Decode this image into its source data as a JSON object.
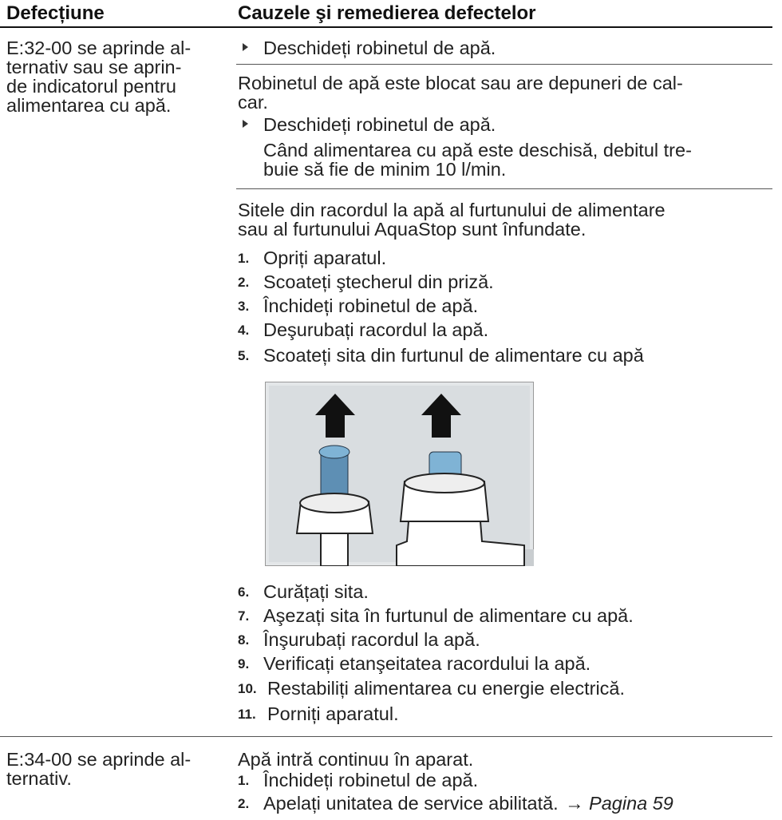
{
  "table": {
    "headers": [
      "Defecțiune",
      "Cauzele şi remedierea defectelor"
    ],
    "rows": [
      {
        "fault": [
          "E:32-00 se aprinde al-",
          "ternativ sau se aprin-",
          "de indicatorul pentru",
          "alimentarea cu apă."
        ],
        "causes": [
          {
            "actions": [
              "Deschideți robinetul de apă."
            ]
          },
          {
            "cause": [
              "Robinetul de apă este blocat sau are depuneri de cal-",
              "car."
            ],
            "actions": [
              "Deschideți robinetul de apă."
            ],
            "note": [
              "Când alimentarea cu apă este deschisă, debitul tre-",
              "buie să fie de minim 10 l/min."
            ]
          },
          {
            "cause": [
              "Sitele din racordul la apă al furtunului de alimentare",
              "sau al furtunului AquaStop sunt înfundate."
            ],
            "steps": [
              {
                "number": "1.",
                "text": "Opriți aparatul."
              },
              {
                "number": "2.",
                "text": "Scoateți ştecherul din priză."
              },
              {
                "number": "3.",
                "text": "Închideți robinetul de apă."
              },
              {
                "number": "4.",
                "text": "Deşurubați racordul la apă."
              },
              {
                "number": "5.",
                "text": "Scoateți sita din furtunul de alimentare cu apă"
              },
              {
                "number": "6.",
                "text": "Curățați sita."
              },
              {
                "number": "7.",
                "text": "Aşezați sita în furtunul de alimentare cu apă."
              },
              {
                "number": "8.",
                "text": "Înşurubați racordul la apă."
              },
              {
                "number": "9.",
                "text": "Verificați etanşeitatea racordului la apă."
              },
              {
                "number": "10.",
                "text": "Restabiliți alimentarea cu energie electrică."
              },
              {
                "number": "11.",
                "text": "Porniți aparatul."
              }
            ]
          }
        ]
      },
      {
        "fault": [
          "E:34-00 se aprinde al-",
          "ternativ."
        ],
        "causes": [
          {
            "cause": [
              "Apă intră continuu în aparat."
            ],
            "steps": [
              {
                "number": "1.",
                "text": "Închideți robinetul de apă."
              },
              {
                "number": "2.",
                "text": "Apelați unitatea de service abilitată.",
                "link": "→ Pagina 59"
              }
            ]
          }
        ]
      }
    ]
  }
}
